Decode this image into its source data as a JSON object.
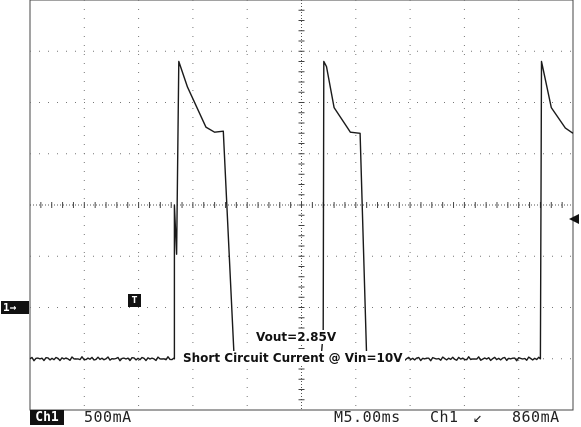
{
  "chart_data": {
    "type": "line",
    "title": "",
    "xlabel": "",
    "ylabel": "",
    "grid": true,
    "x_divisions": 10,
    "y_divisions": 8,
    "xlim": [
      0,
      50
    ],
    "ylim": [
      -500,
      3500
    ],
    "x_unit": "ms",
    "y_unit": "mA",
    "series": [
      {
        "color": "#1a1a1a",
        "x": [
          0,
          13.3,
          13.3,
          13.5,
          13.7,
          14.5,
          16.2,
          17.0,
          17.8,
          18.8,
          26.8,
          27.0,
          27.05,
          27.3,
          28.0,
          29.5,
          30.4,
          31.0,
          47.0,
          47.1,
          47.3,
          48.0,
          49.3,
          50.0
        ],
        "y": [
          0,
          0,
          1500,
          1020,
          2900,
          2650,
          2260,
          2210,
          2220,
          0,
          0,
          250,
          2900,
          2850,
          2450,
          2210,
          2200,
          0,
          0,
          2900,
          2800,
          2450,
          2250,
          2200
        ]
      }
    ]
  },
  "channel_badge": "Ch1",
  "ground_marker": "1→",
  "trigger_marker": "T",
  "status": {
    "ch1_scale": "500mA",
    "timebase": "M5.00ms",
    "trigger_channel": "Ch1",
    "trigger_slope": "↙",
    "trigger_level": "860mA"
  },
  "annotations": {
    "vout": "Vout=2.85V",
    "caption": "Short Circuit Current @ Vin=10V"
  }
}
